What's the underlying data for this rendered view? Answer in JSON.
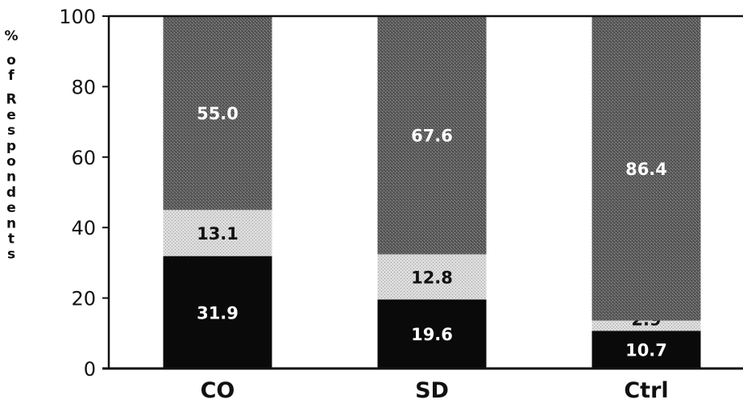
{
  "chart_data": {
    "type": "bar",
    "stacked": true,
    "title": "",
    "xlabel": "",
    "ylabel": "% of Respondents",
    "ylim": [
      0,
      100
    ],
    "yticks": [
      0,
      20,
      40,
      60,
      80,
      100
    ],
    "categories": [
      "CO",
      "SD",
      "Ctrl"
    ],
    "series": [
      {
        "values": [
          31.9,
          19.6,
          10.7
        ],
        "value_labels": [
          "31.9",
          "19.6",
          "10.7"
        ],
        "color": "#0a0a0a",
        "label_color": "#ffffff"
      },
      {
        "values": [
          13.1,
          12.8,
          2.9
        ],
        "value_labels": [
          "13.1",
          "12.8",
          "2.9"
        ],
        "color": "#d4d4d4",
        "label_color": "#111111"
      },
      {
        "values": [
          55.0,
          67.6,
          86.4
        ],
        "value_labels": [
          "55.0",
          "67.6",
          "86.4"
        ],
        "color": "#6e6e6e",
        "label_color": "#ffffff"
      }
    ],
    "grid": false,
    "legend": "none"
  }
}
